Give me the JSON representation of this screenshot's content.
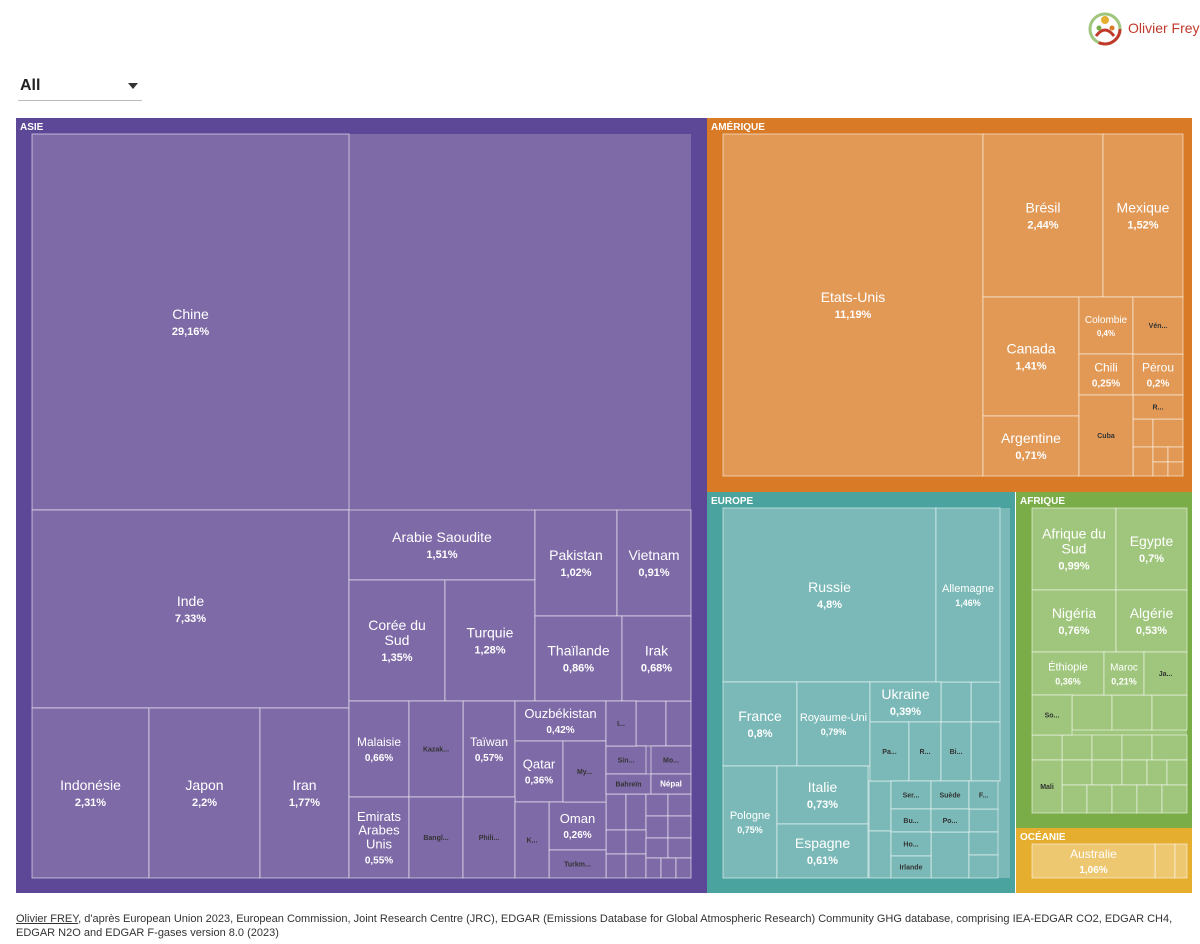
{
  "logo": {
    "text": "Olivier Frey"
  },
  "filter": {
    "selected": "All"
  },
  "footer": {
    "author": "Olivier FREY",
    "source": ", d'après European Union 2023, European Commission, Joint Research Centre (JRC), EDGAR (Emissions Database for Global Atmospheric Research) Community GHG database, comprising IEA-EDGAR CO2, EDGAR CH4, EDGAR N2O and EDGAR F-gases version 8.0 (2023)"
  },
  "colors": {
    "asie": "#5c4896",
    "asie_tile": "#7e6aa7",
    "amerique": "#d97b26",
    "amerique_tile": "#e29956",
    "europe": "#4aa39f",
    "europe_tile": "#7ab9b7",
    "afrique": "#7aac47",
    "afrique_tile": "#9fc67c",
    "oceanie": "#e5ae2e",
    "oceanie_tile": "#eec771"
  },
  "chart_data": {
    "type": "treemap",
    "unit": "%",
    "regions": [
      {
        "key": "asie",
        "name": "ASIE",
        "countries": [
          {
            "name": "Chine",
            "value": "29,16%"
          },
          {
            "name": "Inde",
            "value": "7,33%"
          },
          {
            "name": "Indonésie",
            "value": "2,31%"
          },
          {
            "name": "Japon",
            "value": "2,2%"
          },
          {
            "name": "Iran",
            "value": "1,77%"
          },
          {
            "name": "Arabie Saoudite",
            "value": "1,51%"
          },
          {
            "name": "Corée du Sud",
            "value": "1,35%"
          },
          {
            "name": "Turquie",
            "value": "1,28%"
          },
          {
            "name": "Pakistan",
            "value": "1,02%"
          },
          {
            "name": "Vietnam",
            "value": "0,91%"
          },
          {
            "name": "Thaïlande",
            "value": "0,86%"
          },
          {
            "name": "Irak",
            "value": "0,68%"
          },
          {
            "name": "Malaisie",
            "value": "0,66%"
          },
          {
            "name": "Taïwan",
            "value": "0,57%"
          },
          {
            "name": "Emirats Arabes Unis",
            "value": "0,55%"
          },
          {
            "name": "Ouzbékistan",
            "value": "0,42%"
          },
          {
            "name": "Qatar",
            "value": "0,36%"
          },
          {
            "name": "Oman",
            "value": "0,26%"
          },
          {
            "name": "Kazak...",
            "value": ""
          },
          {
            "name": "Bangl...",
            "value": ""
          },
          {
            "name": "Phili...",
            "value": ""
          },
          {
            "name": "My...",
            "value": ""
          },
          {
            "name": "Sin...",
            "value": ""
          },
          {
            "name": "Mo...",
            "value": ""
          },
          {
            "name": "Bahreïn",
            "value": ""
          },
          {
            "name": "Népal",
            "value": ""
          },
          {
            "name": "Turkm...",
            "value": ""
          },
          {
            "name": "K...",
            "value": ""
          },
          {
            "name": "I...",
            "value": ""
          }
        ]
      },
      {
        "key": "amerique",
        "name": "AMÉRIQUE",
        "countries": [
          {
            "name": "Etats-Unis",
            "value": "11,19%"
          },
          {
            "name": "Brésil",
            "value": "2,44%"
          },
          {
            "name": "Mexique",
            "value": "1,52%"
          },
          {
            "name": "Canada",
            "value": "1,41%"
          },
          {
            "name": "Argentine",
            "value": "0,71%"
          },
          {
            "name": "Colombie",
            "value": "0,4%"
          },
          {
            "name": "Chili",
            "value": "0,25%"
          },
          {
            "name": "Pérou",
            "value": "0,2%"
          },
          {
            "name": "Vén...",
            "value": ""
          },
          {
            "name": "R...",
            "value": ""
          },
          {
            "name": "Cuba",
            "value": ""
          }
        ]
      },
      {
        "key": "europe",
        "name": "EUROPE",
        "countries": [
          {
            "name": "Russie",
            "value": "4,8%"
          },
          {
            "name": "Allemagne",
            "value": "1,46%"
          },
          {
            "name": "France",
            "value": "0,8%"
          },
          {
            "name": "Royaume-Uni",
            "value": "0,79%"
          },
          {
            "name": "Ukraine",
            "value": "0,39%"
          },
          {
            "name": "Pologne",
            "value": "0,75%"
          },
          {
            "name": "Italie",
            "value": "0,73%"
          },
          {
            "name": "Espagne",
            "value": "0,61%"
          },
          {
            "name": "Pa...",
            "value": ""
          },
          {
            "name": "R...",
            "value": ""
          },
          {
            "name": "Bi...",
            "value": ""
          },
          {
            "name": "Ser...",
            "value": ""
          },
          {
            "name": "Suède",
            "value": ""
          },
          {
            "name": "F...",
            "value": ""
          },
          {
            "name": "Bu...",
            "value": ""
          },
          {
            "name": "Po...",
            "value": ""
          },
          {
            "name": "Ho...",
            "value": ""
          },
          {
            "name": "Irlande",
            "value": ""
          }
        ]
      },
      {
        "key": "afrique",
        "name": "AFRIQUE",
        "countries": [
          {
            "name": "Afrique du Sud",
            "value": "0,99%"
          },
          {
            "name": "Egypte",
            "value": "0,7%"
          },
          {
            "name": "Nigéria",
            "value": "0,76%"
          },
          {
            "name": "Algérie",
            "value": "0,53%"
          },
          {
            "name": "Éthiopie",
            "value": "0,36%"
          },
          {
            "name": "Maroc",
            "value": "0,21%"
          },
          {
            "name": "Ja...",
            "value": ""
          },
          {
            "name": "So...",
            "value": ""
          },
          {
            "name": "Mali",
            "value": ""
          }
        ]
      },
      {
        "key": "oceanie",
        "name": "OCÉANIE",
        "countries": [
          {
            "name": "Australie",
            "value": "1,06%"
          }
        ]
      }
    ]
  }
}
